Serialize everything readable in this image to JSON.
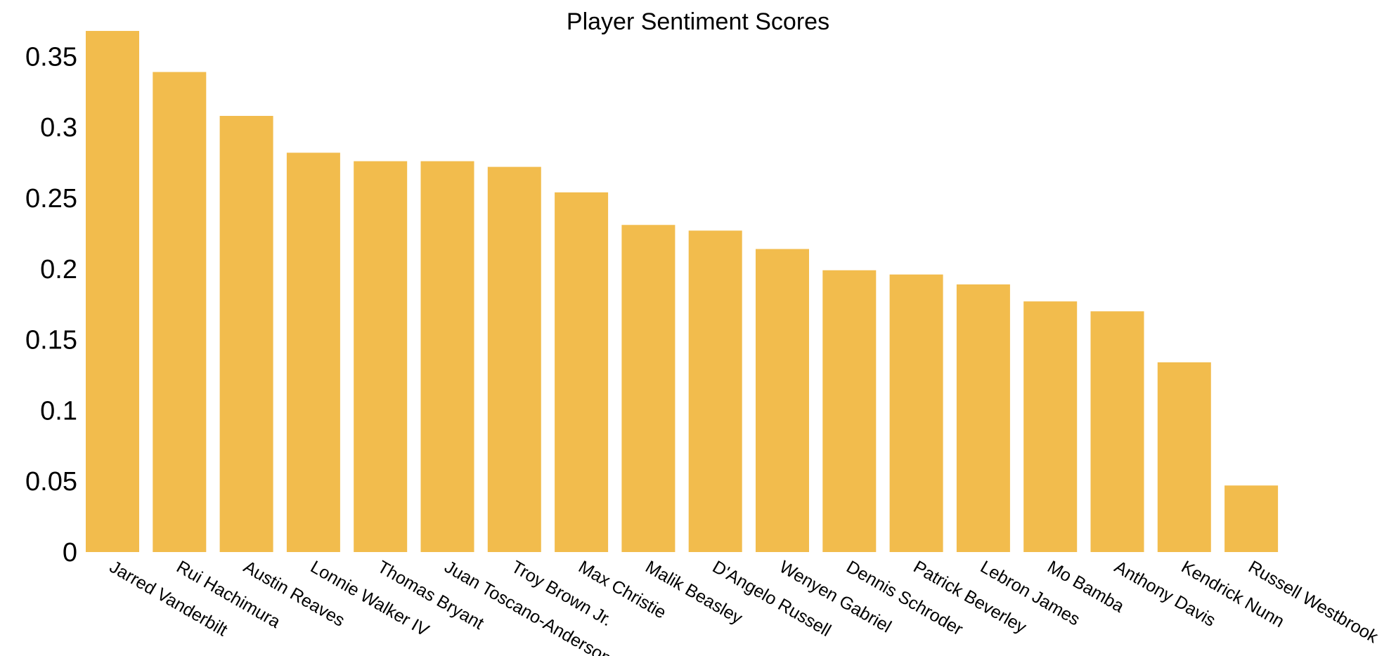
{
  "chart_data": {
    "type": "bar",
    "title": "Player Sentiment Scores",
    "xlabel": "",
    "ylabel": "",
    "ylim": [
      0,
      0.37
    ],
    "yticks": [
      0,
      0.05,
      0.1,
      0.15,
      0.2,
      0.25,
      0.3,
      0.35
    ],
    "ytick_labels": [
      "0",
      "0.05",
      "0.1",
      "0.15",
      "0.2",
      "0.25",
      "0.3",
      "0.35"
    ],
    "grid": false,
    "bar_color": "#f2bc4d",
    "categories": [
      "Jarred Vanderbilt",
      "Rui Hachimura",
      "Austin Reaves",
      "Lonnie Walker IV",
      "Thomas Bryant",
      "Juan Toscano-Anderson",
      "Troy Brown Jr.",
      "Max Christie",
      "Malik Beasley",
      "D'Angelo Russell",
      "Wenyen Gabriel",
      "Dennis Schroder",
      "Patrick Beverley",
      "Lebron James",
      "Mo Bamba",
      "Anthony Davis",
      "Kendrick Nunn",
      "Russell Westbrook"
    ],
    "values": [
      0.368,
      0.339,
      0.308,
      0.282,
      0.276,
      0.276,
      0.272,
      0.254,
      0.231,
      0.227,
      0.214,
      0.199,
      0.196,
      0.189,
      0.177,
      0.17,
      0.134,
      0.047
    ]
  }
}
